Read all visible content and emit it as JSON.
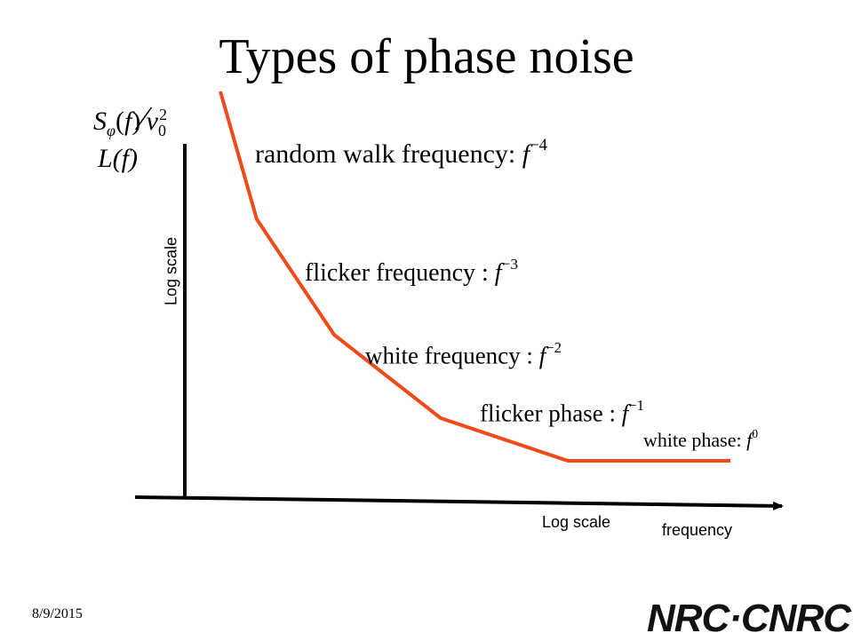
{
  "title": "Types of phase noise",
  "y_label_math_1": "Sφ(f)/ν₀²",
  "y_label_math_2": "L(f)",
  "y_axis_label": "Log scale",
  "x_axis_label": "Log scale",
  "x_axis_name": "frequency",
  "noise_types": [
    {
      "name": "random walk frequency",
      "exponent": "−4"
    },
    {
      "name": "flicker frequency",
      "exponent": "−3"
    },
    {
      "name": "white frequency",
      "exponent": "−2"
    },
    {
      "name": "flicker phase",
      "exponent": "−1"
    },
    {
      "name": "white phase",
      "exponent": "0"
    }
  ],
  "date": "8/9/2015",
  "logo_text": "NRC·CNRC",
  "colors": {
    "curve": "#f04a1a",
    "axes": "#000000",
    "text": "#000000"
  }
}
